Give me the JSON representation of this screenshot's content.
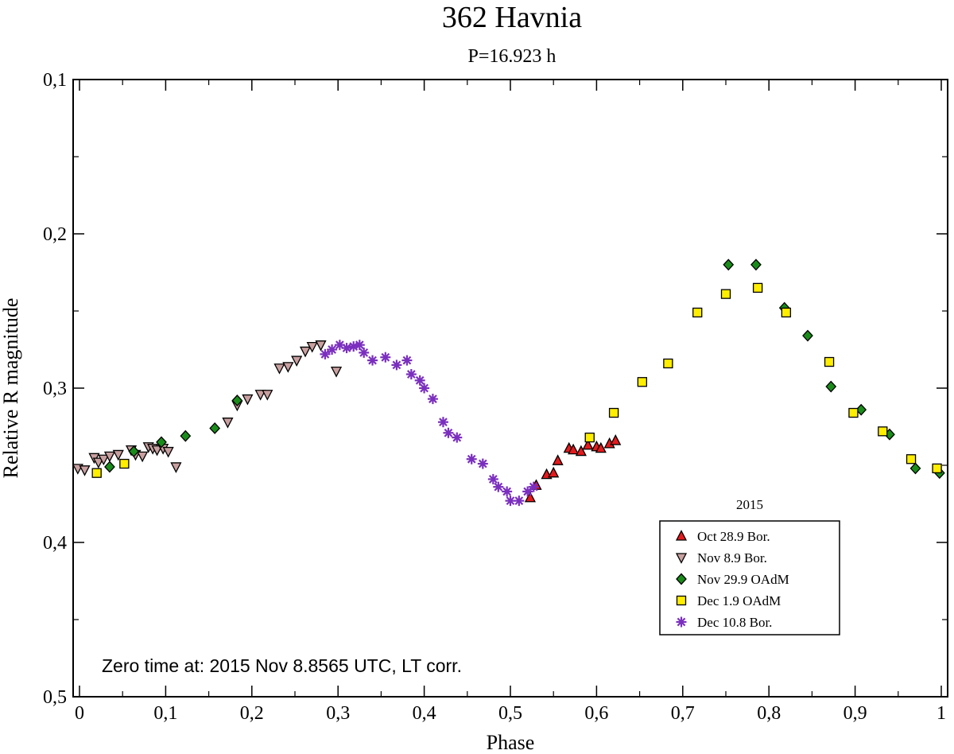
{
  "chart_data": {
    "type": "scatter",
    "title": "362 Havnia",
    "subtitle": "P=16.923 h",
    "xlabel": "Phase",
    "ylabel": "Relative R magnitude",
    "xlim": [
      0,
      1
    ],
    "ylim": [
      0.1,
      0.5
    ],
    "y_inverted": true,
    "x_ticks": [
      0,
      0.1,
      0.2,
      0.3,
      0.4,
      0.5,
      0.6,
      0.7,
      0.8,
      0.9,
      1
    ],
    "x_tick_labels": [
      "0",
      "0,1",
      "0,2",
      "0,3",
      "0,4",
      "0,5",
      "0,6",
      "0,7",
      "0,8",
      "0,9",
      "1"
    ],
    "y_ticks": [
      0.1,
      0.2,
      0.3,
      0.4,
      0.5
    ],
    "y_tick_labels": [
      "0,1",
      "0,2",
      "0,3",
      "0,4",
      "0,5"
    ],
    "annotation": "Zero time at: 2015 Nov 8.8565 UTC, LT corr.",
    "legend_title": "2015",
    "legend_position": "bottom-right",
    "series": [
      {
        "name": "Oct 28.9 Bor.",
        "marker": "triangle-up",
        "color": "#e41a1c",
        "points": [
          [
            0.523,
            0.371
          ],
          [
            0.53,
            0.363
          ],
          [
            0.542,
            0.356
          ],
          [
            0.55,
            0.355
          ],
          [
            0.555,
            0.347
          ],
          [
            0.568,
            0.339
          ],
          [
            0.573,
            0.34
          ],
          [
            0.582,
            0.341
          ],
          [
            0.59,
            0.337
          ],
          [
            0.6,
            0.338
          ],
          [
            0.605,
            0.339
          ],
          [
            0.615,
            0.336
          ],
          [
            0.622,
            0.334
          ]
        ]
      },
      {
        "name": "Nov 8.9 Bor.",
        "marker": "triangle-down",
        "color": "#c9a0a0",
        "points": [
          [
            -0.002,
            0.352
          ],
          [
            0.006,
            0.353
          ],
          [
            0.017,
            0.345
          ],
          [
            0.022,
            0.348
          ],
          [
            0.028,
            0.346
          ],
          [
            0.035,
            0.344
          ],
          [
            0.045,
            0.343
          ],
          [
            0.06,
            0.34
          ],
          [
            0.065,
            0.343
          ],
          [
            0.073,
            0.344
          ],
          [
            0.08,
            0.338
          ],
          [
            0.085,
            0.339
          ],
          [
            0.09,
            0.34
          ],
          [
            0.097,
            0.339
          ],
          [
            0.103,
            0.341
          ],
          [
            0.112,
            0.351
          ],
          [
            0.172,
            0.322
          ],
          [
            0.183,
            0.311
          ],
          [
            0.195,
            0.307
          ],
          [
            0.21,
            0.304
          ],
          [
            0.218,
            0.304
          ],
          [
            0.232,
            0.287
          ],
          [
            0.242,
            0.286
          ],
          [
            0.252,
            0.282
          ],
          [
            0.262,
            0.276
          ],
          [
            0.27,
            0.273
          ],
          [
            0.28,
            0.272
          ],
          [
            0.298,
            0.289
          ]
        ]
      },
      {
        "name": "Nov 29.9 OAdM",
        "marker": "diamond",
        "color": "#1a8c1a",
        "points": [
          [
            0.035,
            0.351
          ],
          [
            0.063,
            0.341
          ],
          [
            0.095,
            0.335
          ],
          [
            0.123,
            0.331
          ],
          [
            0.157,
            0.326
          ],
          [
            0.183,
            0.308
          ],
          [
            0.753,
            0.22
          ],
          [
            0.785,
            0.22
          ],
          [
            0.818,
            0.248
          ],
          [
            0.845,
            0.266
          ],
          [
            0.872,
            0.299
          ],
          [
            0.907,
            0.314
          ],
          [
            0.94,
            0.33
          ],
          [
            0.97,
            0.352
          ],
          [
            0.998,
            0.355
          ]
        ]
      },
      {
        "name": "Dec 1.9 OAdM",
        "marker": "square",
        "color": "#ffee00",
        "points": [
          [
            0.02,
            0.355
          ],
          [
            0.052,
            0.349
          ],
          [
            0.592,
            0.332
          ],
          [
            0.62,
            0.316
          ],
          [
            0.653,
            0.296
          ],
          [
            0.683,
            0.284
          ],
          [
            0.717,
            0.251
          ],
          [
            0.75,
            0.239
          ],
          [
            0.787,
            0.235
          ],
          [
            0.82,
            0.251
          ],
          [
            0.87,
            0.283
          ],
          [
            0.898,
            0.316
          ],
          [
            0.932,
            0.328
          ],
          [
            0.965,
            0.346
          ],
          [
            0.995,
            0.352
          ]
        ]
      },
      {
        "name": "Dec 10.8 Bor.",
        "marker": "asterisk",
        "color": "#7b2fbe",
        "points": [
          [
            0.285,
            0.278
          ],
          [
            0.293,
            0.275
          ],
          [
            0.302,
            0.272
          ],
          [
            0.31,
            0.274
          ],
          [
            0.318,
            0.273
          ],
          [
            0.325,
            0.272
          ],
          [
            0.33,
            0.277
          ],
          [
            0.34,
            0.282
          ],
          [
            0.355,
            0.28
          ],
          [
            0.368,
            0.285
          ],
          [
            0.38,
            0.282
          ],
          [
            0.385,
            0.291
          ],
          [
            0.395,
            0.295
          ],
          [
            0.4,
            0.3
          ],
          [
            0.41,
            0.307
          ],
          [
            0.422,
            0.322
          ],
          [
            0.428,
            0.329
          ],
          [
            0.438,
            0.332
          ],
          [
            0.455,
            0.346
          ],
          [
            0.468,
            0.349
          ],
          [
            0.48,
            0.359
          ],
          [
            0.486,
            0.364
          ],
          [
            0.496,
            0.367
          ],
          [
            0.5,
            0.373
          ],
          [
            0.51,
            0.373
          ],
          [
            0.52,
            0.367
          ],
          [
            0.527,
            0.364
          ]
        ]
      }
    ]
  }
}
